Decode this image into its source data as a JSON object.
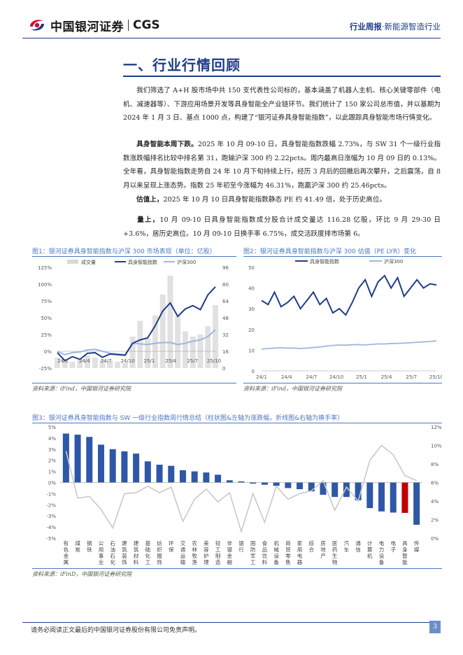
{
  "header": {
    "logo_text": "中国银河证券",
    "logo_cgs": "CGS",
    "report_type": "行业周报",
    "industry": "·新能源智造行业"
  },
  "section": {
    "title": "一、行业行情回顾"
  },
  "paragraphs": {
    "p1": "我们筛选了 A+H 股市场中共 150 支代表性公司标的，基本涵盖了机器人主机、核心关键零部件（电机、减速器等）、下游应用场景开发等具身智能全产业链环节。我们统计了 150 家公司总市值，并以基期为 2024 年 1 月 3 日、基点 1000 点，构建了“银河证券具身智能指数”，以此跟踪具身智能市场行情变化。",
    "p2_bold": "具身智能本周下跌。",
    "p2": "2025 年 10 月 09-10 日，具身智能指数跌幅 2.73%，与 SW 31 个一级行业指数涨跌幅排名比较中排名第 31，跑输沪深 300 约 2.22pcts。周内最高日涨幅为 10 月 09 日的 0.13%。全年看，具身智能指数走势自 24 年 10 月下旬持续上行，经历 3 月后的回撤后再次攀升，之后震荡，自 8 月以来呈现上涨态势。指数 25 年初至今涨幅为 46.31%，跑赢沪深 300 约 25.46pcts。",
    "p3_bold": "估值上，",
    "p3": "2025 年 10 月 10 日具身智能指数静态 PE 约 41.49 倍，处于历史高位。",
    "p4_bold": "量上，",
    "p4": "10 月 09-10 日具身智能指数成分股合计成交量达 116.28 亿股，环比 9 月 29-30 日+3.6%，居历史高位。10 月 09-10 日换手率 6.75%，成交活跃度排市场第 6。"
  },
  "figure1": {
    "caption": "图1：银河证券具身智能指数与沪深 300 市场表现（单位：亿股）",
    "source": "资料来源：iFind，中国银河证券研究院",
    "chart_data": {
      "type": "line",
      "legend": [
        "成交量",
        "具身智能指数",
        "沪深300"
      ],
      "x_ticks": [
        "24/1",
        "24/4",
        "24/7",
        "24/10",
        "25/1",
        "25/4",
        "25/7",
        "25/10"
      ],
      "left_axis": {
        "ticks": [
          "125%",
          "100%",
          "75%",
          "50%",
          "25%",
          "0%",
          "-25%"
        ],
        "range": [
          -25,
          125
        ]
      },
      "right_axis": {
        "ticks": [
          "96",
          "80",
          "64",
          "48",
          "32",
          "16",
          "0"
        ],
        "range": [
          0,
          96
        ]
      },
      "series": [
        {
          "name": "具身智能指数",
          "unit": "%",
          "x": [
            0,
            1,
            2,
            3,
            4,
            5,
            6,
            7,
            8,
            9,
            10,
            11,
            12,
            13,
            14,
            15,
            16,
            17,
            18,
            19,
            20,
            21
          ],
          "values": [
            -2,
            -14,
            -8,
            -12,
            -3,
            -2,
            -9,
            -4,
            -5,
            -6,
            12,
            17,
            20,
            38,
            60,
            72,
            52,
            63,
            68,
            62,
            84,
            96
          ]
        },
        {
          "name": "沪深300",
          "unit": "%",
          "x": [
            0,
            1,
            2,
            3,
            4,
            5,
            6,
            7,
            8,
            9,
            10,
            11,
            12,
            13,
            14,
            15,
            16,
            17,
            18,
            19,
            20,
            21
          ],
          "values": [
            0,
            -5,
            -2,
            -1,
            2,
            3,
            0,
            -3,
            -4,
            -5,
            12,
            11,
            10,
            12,
            13,
            13,
            10,
            12,
            15,
            17,
            22,
            32
          ]
        },
        {
          "name": "成交量",
          "unit": "亿股",
          "x": [
            0,
            1,
            2,
            3,
            4,
            5,
            6,
            7,
            8,
            9,
            10,
            11,
            12,
            13,
            14,
            15,
            16,
            17,
            18,
            19,
            20,
            21
          ],
          "values": [
            10,
            8,
            6,
            8,
            12,
            10,
            8,
            7,
            6,
            5,
            30,
            45,
            28,
            50,
            70,
            88,
            50,
            35,
            30,
            32,
            40,
            60
          ]
        }
      ]
    }
  },
  "figure2": {
    "caption": "图2：银河证券具身智能指数与沪深 300 估值（PE LYR）变化",
    "source": "资料来源：iFind，中国银河证券研究院",
    "chart_data": {
      "type": "line",
      "legend": [
        "具身智能指数",
        "沪深300"
      ],
      "x_ticks": [
        "24/1",
        "24/4",
        "24/7",
        "24/10",
        "25/1",
        "25/4",
        "25/7",
        "25/10"
      ],
      "y_axis": {
        "ticks": [
          "50",
          "40",
          "30",
          "20",
          "10",
          "0"
        ],
        "range": [
          0,
          50
        ]
      },
      "series": [
        {
          "name": "具身智能指数",
          "x": [
            0,
            1,
            2,
            3,
            4,
            5,
            6,
            7,
            8,
            9,
            10,
            11,
            12,
            13,
            14,
            15,
            16,
            17,
            18,
            19,
            20,
            21,
            22,
            23,
            24,
            25,
            26,
            27
          ],
          "values": [
            34,
            32,
            38,
            31,
            33,
            36,
            30,
            34,
            38,
            32,
            35,
            28,
            30,
            27,
            33,
            40,
            44,
            36,
            43,
            46,
            40,
            45,
            36,
            40,
            44,
            40,
            42,
            41.5
          ]
        },
        {
          "name": "沪深300",
          "x": [
            0,
            1,
            2,
            3,
            4,
            5,
            6,
            7,
            8,
            9,
            10,
            11,
            12,
            13,
            14,
            15,
            16,
            17,
            18,
            19,
            20,
            21,
            22,
            23,
            24,
            25,
            26,
            27
          ],
          "values": [
            10.5,
            10.8,
            11,
            11.2,
            11,
            11,
            10.8,
            11,
            11.3,
            11.5,
            12,
            12.3,
            12.5,
            12.4,
            12.6,
            12.7,
            12.5,
            12.8,
            13,
            13,
            13.2,
            13.3,
            13.4,
            13.6,
            13.8,
            14,
            14.2,
            14.5
          ]
        }
      ]
    }
  },
  "figure3": {
    "caption": "图3：银河证券具身智能指数与 SW 一级行业指数周行情总结（柱状图&左轴为涨跌幅，折线图&右轴为换手率）",
    "source": "资料来源：iFinD，中国银河证券研究院",
    "chart_data": {
      "type": "bar",
      "left_axis": {
        "ticks": [
          "5%",
          "4%",
          "3%",
          "2%",
          "1%",
          "0%",
          "-1%",
          "-2%",
          "-3%",
          "-4%",
          "-5%"
        ],
        "range": [
          -5,
          5
        ]
      },
      "right_axis": {
        "ticks": [
          "12%",
          "10%",
          "8%",
          "6%",
          "4%",
          "2%",
          "0%"
        ],
        "range": [
          0,
          12
        ]
      },
      "categories": [
        "有色金属",
        "煤炭",
        "钢铁",
        "公用事业",
        "石油石化",
        "建筑装饰",
        "建筑材料",
        "基础化工",
        "纺织服饰",
        "环保",
        "交通运输",
        "农林牧渔",
        "美容护理",
        "轻工制造",
        "非银金融",
        "银行",
        "国防军工",
        "食品饮料",
        "机械设备",
        "商贸零售",
        "家用电器",
        "综合",
        "房地产",
        "医药生物",
        "汽车",
        "通信",
        "计算机",
        "电力设备",
        "电子",
        "具身智能",
        "传媒"
      ],
      "series": [
        {
          "name": "涨跌幅",
          "unit": "%",
          "values": [
            4.4,
            4.3,
            4.1,
            3.4,
            3.0,
            2.8,
            2.6,
            1.9,
            1.6,
            1.5,
            1.1,
            1.0,
            0.9,
            0.7,
            0.2,
            0.1,
            -0.1,
            -0.2,
            -0.3,
            -0.5,
            -0.6,
            -0.8,
            -1.1,
            -1.3,
            -1.3,
            -1.6,
            -2.3,
            -2.6,
            -2.7,
            -2.73,
            -3.8
          ]
        },
        {
          "name": "换手率",
          "unit": "%",
          "values": [
            9.4,
            4.3,
            4.5,
            3.1,
            1.1,
            4.8,
            4.9,
            5.6,
            4.9,
            5.5,
            1.8,
            4.2,
            5.3,
            3.9,
            4.9,
            0.7,
            4.8,
            1.7,
            5.6,
            4.2,
            4.8,
            5.1,
            6.2,
            3.0,
            5.5,
            4.0,
            8.4,
            10.0,
            9.0,
            6.75,
            6.2
          ]
        }
      ],
      "highlight_category": "具身智能"
    }
  },
  "footer": {
    "disclaimer": "请务必阅读正文最后的中国银河证券股份有限公司免责声明。",
    "page": "3"
  },
  "colors": {
    "brand_blue": "#1f3c88",
    "bar_blue": "#2e57a7",
    "highlight_red": "#c00000",
    "line_light": "#9fb6e0",
    "volume_gray": "#d9d9d9",
    "caption_blue": "#4a78c2"
  }
}
